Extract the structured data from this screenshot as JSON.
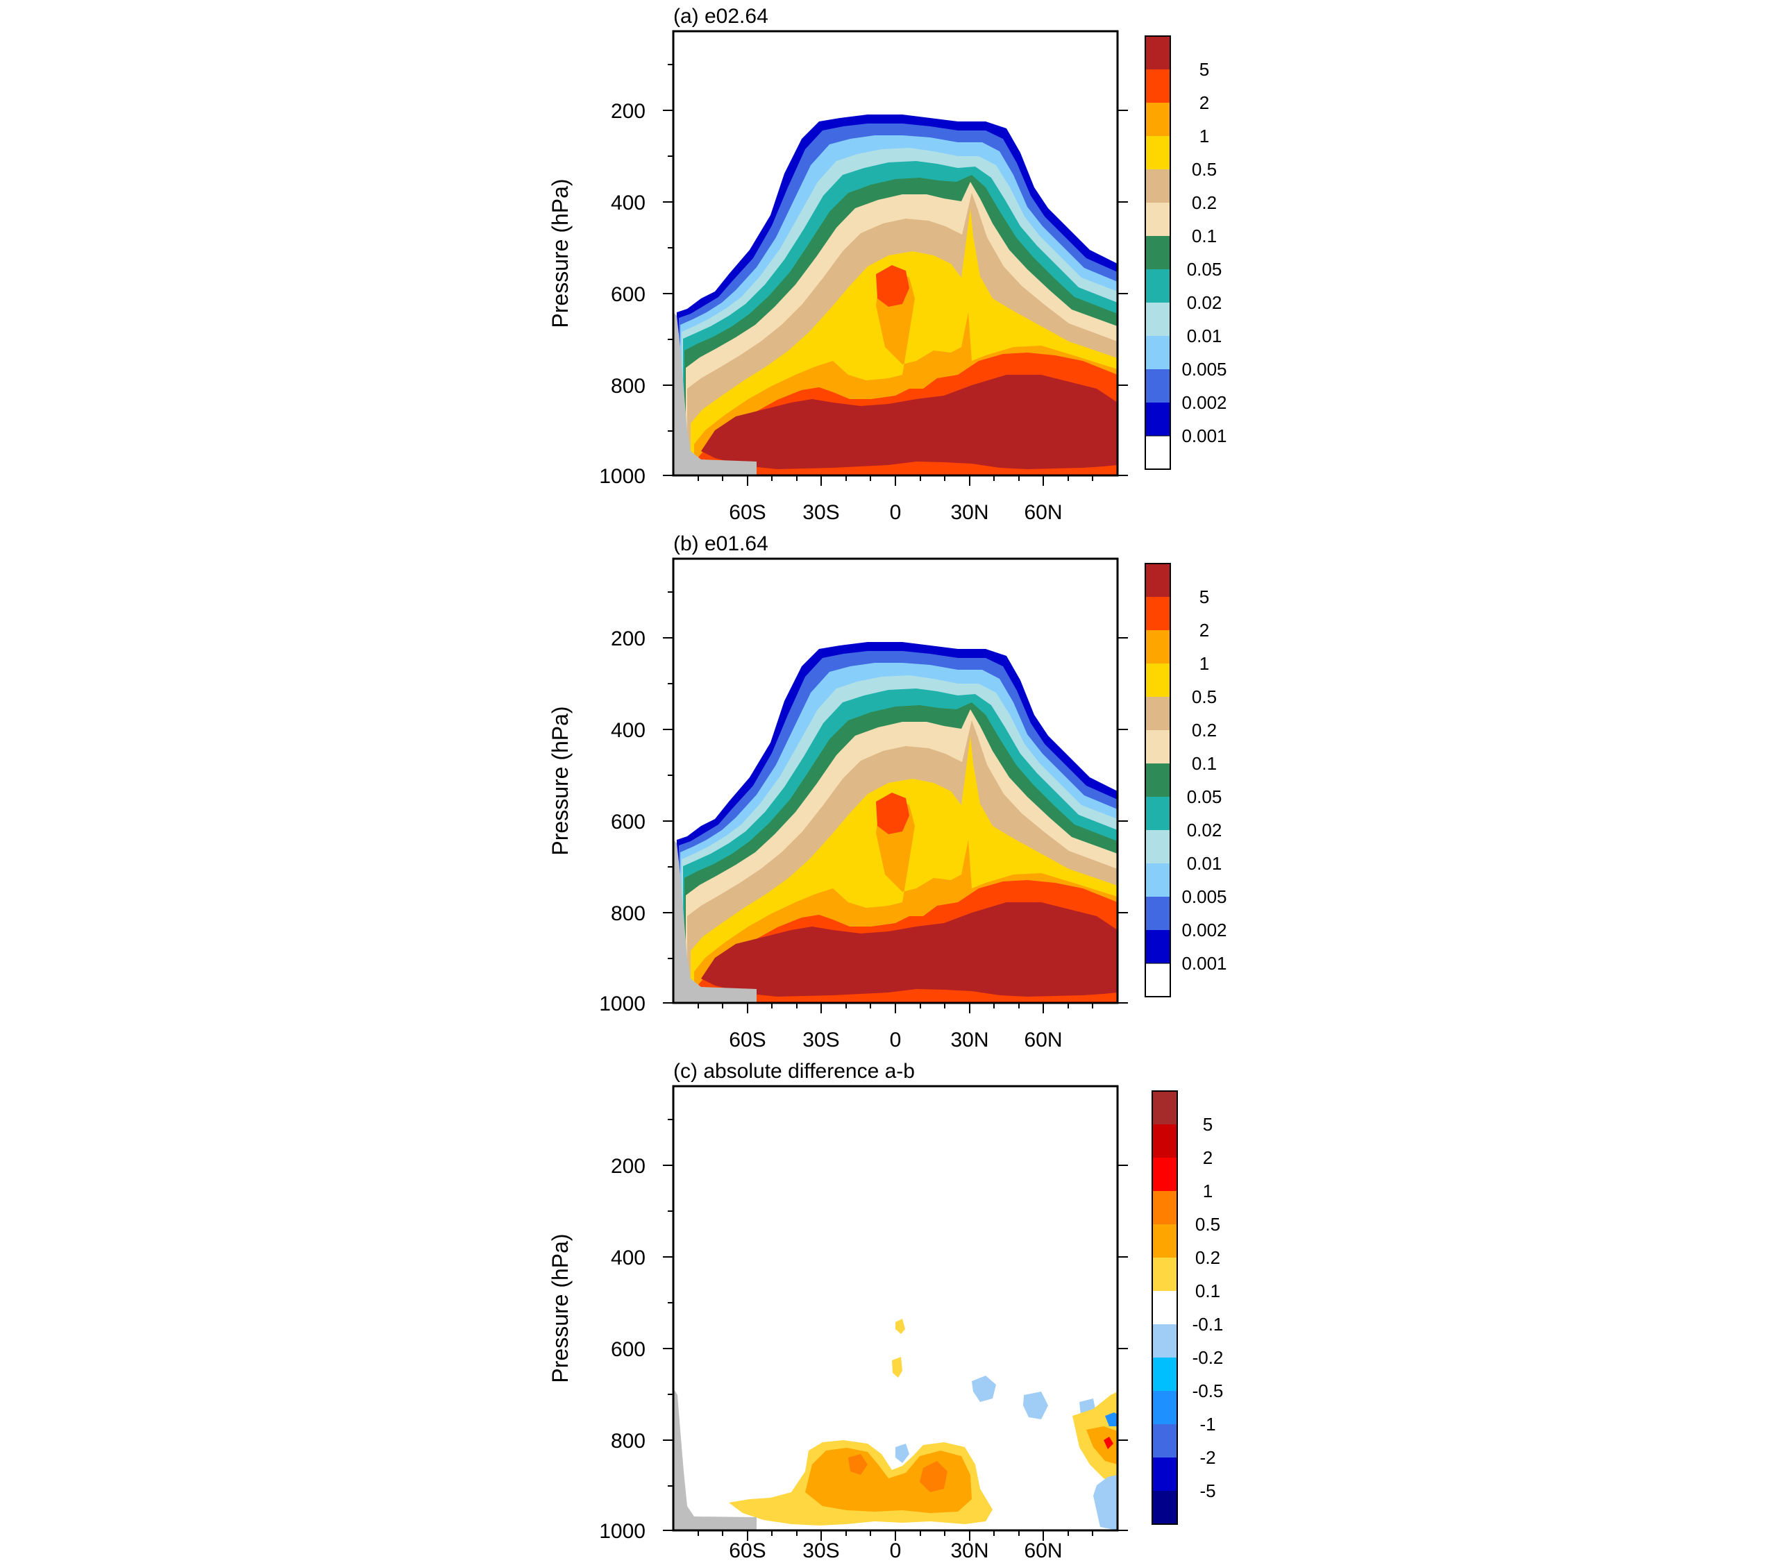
{
  "chart_data": [
    {
      "type": "contour",
      "panel": "a",
      "title": "(a) e02.64",
      "ylabel": "Pressure (hPa)",
      "xlabel": "",
      "x_range": [
        -90,
        90
      ],
      "y_range": [
        1000,
        30
      ],
      "y_axis_reversed": true,
      "yticks": [
        200,
        400,
        600,
        800,
        1000
      ],
      "xticks": [
        {
          "value": -60,
          "label": "60S"
        },
        {
          "value": -30,
          "label": "30S"
        },
        {
          "value": 0,
          "label": "0"
        },
        {
          "value": 30,
          "label": "30N"
        },
        {
          "value": 60,
          "label": "60N"
        }
      ],
      "colorbar_labels": [
        "5",
        "2",
        "1",
        "0.5",
        "0.2",
        "0.1",
        "0.05",
        "0.02",
        "0.01",
        "0.005",
        "0.002",
        "0.001"
      ],
      "colorbar_colors": [
        "#b22222",
        "#ff4500",
        "#ffa500",
        "#ffd700",
        "#deb887",
        "#f5deb3",
        "#2e8b57",
        "#20b2aa",
        "#b0e0e6",
        "#87cefa",
        "#4169e1",
        "#0000cd",
        "#ffffff"
      ],
      "contour_top_hPa": [
        {
          "lat": -88,
          "p": 680
        },
        {
          "lat": -75,
          "p": 620
        },
        {
          "lat": -60,
          "p": 520
        },
        {
          "lat": -45,
          "p": 360
        },
        {
          "lat": -30,
          "p": 270
        },
        {
          "lat": 0,
          "p": 250
        },
        {
          "lat": 30,
          "p": 280
        },
        {
          "lat": 45,
          "p": 420
        },
        {
          "lat": 60,
          "p": 500
        },
        {
          "lat": 75,
          "p": 560
        },
        {
          "lat": 88,
          "p": 610
        }
      ],
      "maximum_core_hPa": [
        {
          "lat": -65,
          "p": 960
        },
        {
          "lat": -30,
          "p": 870
        },
        {
          "lat": 0,
          "p": 860
        },
        {
          "lat": 30,
          "p": 820
        },
        {
          "lat": 60,
          "p": 850
        },
        {
          "lat": 85,
          "p": 960
        }
      ],
      "masked_region": "terrain below 700 hPa near 90S"
    },
    {
      "type": "contour",
      "panel": "b",
      "title": "(b) e01.64",
      "ylabel": "Pressure (hPa)",
      "xlabel": "",
      "x_range": [
        -90,
        90
      ],
      "y_range": [
        1000,
        30
      ],
      "y_axis_reversed": true,
      "yticks": [
        200,
        400,
        600,
        800,
        1000
      ],
      "xticks": [
        {
          "value": -60,
          "label": "60S"
        },
        {
          "value": -30,
          "label": "30S"
        },
        {
          "value": 0,
          "label": "0"
        },
        {
          "value": 30,
          "label": "30N"
        },
        {
          "value": 60,
          "label": "60N"
        }
      ],
      "colorbar_labels": [
        "5",
        "2",
        "1",
        "0.5",
        "0.2",
        "0.1",
        "0.05",
        "0.02",
        "0.01",
        "0.005",
        "0.002",
        "0.001"
      ],
      "colorbar_colors": [
        "#b22222",
        "#ff4500",
        "#ffa500",
        "#ffd700",
        "#deb887",
        "#f5deb3",
        "#2e8b57",
        "#20b2aa",
        "#b0e0e6",
        "#87cefa",
        "#4169e1",
        "#0000cd",
        "#ffffff"
      ]
    },
    {
      "type": "contour",
      "panel": "c",
      "title": "(c) absolute difference a-b",
      "ylabel": "Pressure (hPa)",
      "xlabel": "",
      "x_range": [
        -90,
        90
      ],
      "y_range": [
        1000,
        30
      ],
      "y_axis_reversed": true,
      "yticks": [
        200,
        400,
        600,
        800,
        1000
      ],
      "xticks": [
        {
          "value": -60,
          "label": "60S"
        },
        {
          "value": -30,
          "label": "30S"
        },
        {
          "value": 0,
          "label": "0"
        },
        {
          "value": 30,
          "label": "30N"
        },
        {
          "value": 60,
          "label": "60N"
        }
      ],
      "colorbar_labels": [
        "5",
        "2",
        "1",
        "0.5",
        "0.2",
        "0.1",
        "-0.1",
        "-0.2",
        "-0.5",
        "-1",
        "-2",
        "-5"
      ],
      "colorbar_colors": [
        "#a52a2a",
        "#cc0000",
        "#ff0000",
        "#ff7f00",
        "#ffa500",
        "#ffd740",
        "#ffffff",
        "#a0cdf5",
        "#00bfff",
        "#1e90ff",
        "#4169e1",
        "#0000cd",
        "#00008b"
      ]
    }
  ]
}
